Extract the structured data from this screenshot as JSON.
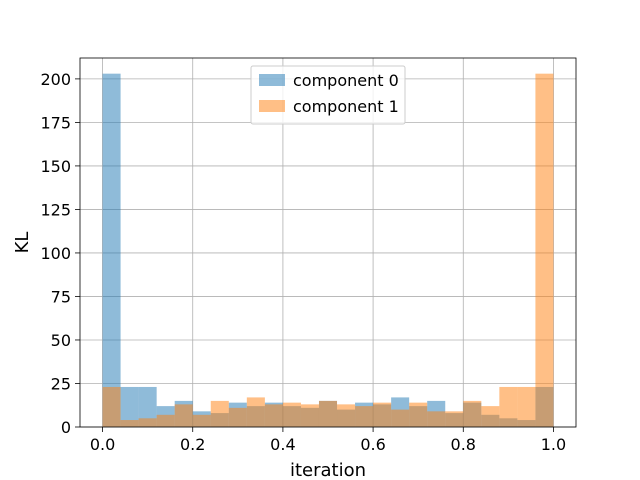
{
  "chart_data": {
    "type": "histogram",
    "xlabel": "iteration",
    "ylabel": "KL",
    "xlim": [
      -0.05,
      1.05
    ],
    "ylim": [
      0,
      212
    ],
    "grid": true,
    "legend_position": "top-center",
    "x_ticks": [
      0.0,
      0.2,
      0.4,
      0.6,
      0.8,
      1.0
    ],
    "x_tick_labels": [
      "0.0",
      "0.2",
      "0.4",
      "0.6",
      "0.8",
      "1.0"
    ],
    "y_ticks": [
      0,
      25,
      50,
      75,
      100,
      125,
      150,
      175,
      200
    ],
    "y_tick_labels": [
      "0",
      "25",
      "50",
      "75",
      "100",
      "125",
      "150",
      "175",
      "200"
    ],
    "bin_edges": [
      0.0,
      0.04,
      0.08,
      0.12,
      0.16,
      0.2,
      0.24,
      0.28,
      0.32,
      0.36,
      0.4,
      0.44,
      0.48,
      0.52,
      0.56,
      0.6,
      0.64,
      0.68,
      0.72,
      0.76,
      0.8,
      0.84,
      0.88,
      0.92,
      0.96,
      1.0
    ],
    "series": [
      {
        "name": "component 0",
        "color": "#1f77b4",
        "values": [
          203,
          23,
          23,
          12,
          15,
          9,
          8,
          14,
          12,
          14,
          12,
          11,
          15,
          10,
          14,
          13,
          17,
          12,
          15,
          8,
          14,
          7,
          5,
          4,
          23
        ]
      },
      {
        "name": "component 1",
        "color": "#ff7f0e",
        "values": [
          23,
          4,
          5,
          7,
          13,
          7,
          15,
          11,
          17,
          13,
          14,
          13,
          15,
          13,
          12,
          14,
          10,
          14,
          9,
          9,
          15,
          12,
          23,
          23,
          203
        ]
      }
    ]
  }
}
